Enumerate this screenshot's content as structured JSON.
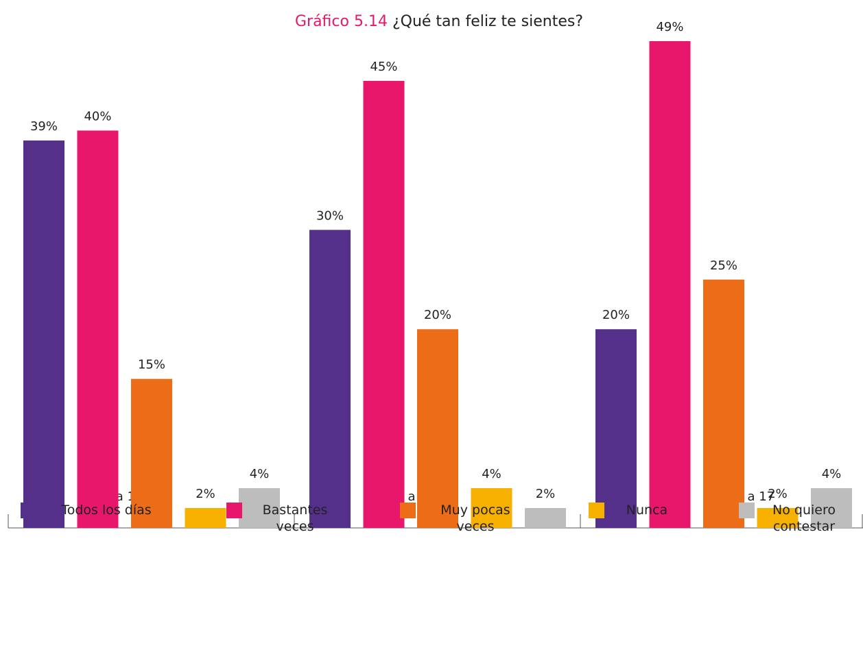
{
  "chart_data": {
    "type": "bar",
    "title_label": "Gráfico 5.14",
    "title": "¿Qué tan feliz te sientes?",
    "categories": [
      "6 a 11",
      "12 a 14",
      "15 a 17"
    ],
    "series": [
      {
        "name": "Todos los días",
        "color": "#55308a",
        "values": [
          39,
          30,
          20
        ],
        "value_labels": [
          "39%",
          "30%",
          "20%"
        ]
      },
      {
        "name": "Bastantes veces",
        "color": "#e8176b",
        "values": [
          40,
          45,
          49
        ],
        "value_labels": [
          "40%",
          "45%",
          "49%"
        ]
      },
      {
        "name": "Muy pocas veces",
        "color": "#ec6c17",
        "values": [
          15,
          20,
          25
        ],
        "value_labels": [
          "15%",
          "20%",
          "25%"
        ]
      },
      {
        "name": "Nunca",
        "color": "#f5b000",
        "values": [
          2,
          4,
          2
        ],
        "value_labels": [
          "2%",
          "4%",
          "2%"
        ]
      },
      {
        "name": "No quiero contestar",
        "color": "#bdbdbd",
        "values": [
          4,
          2,
          4
        ],
        "value_labels": [
          "4%",
          "2%",
          "4%"
        ]
      }
    ]
  }
}
